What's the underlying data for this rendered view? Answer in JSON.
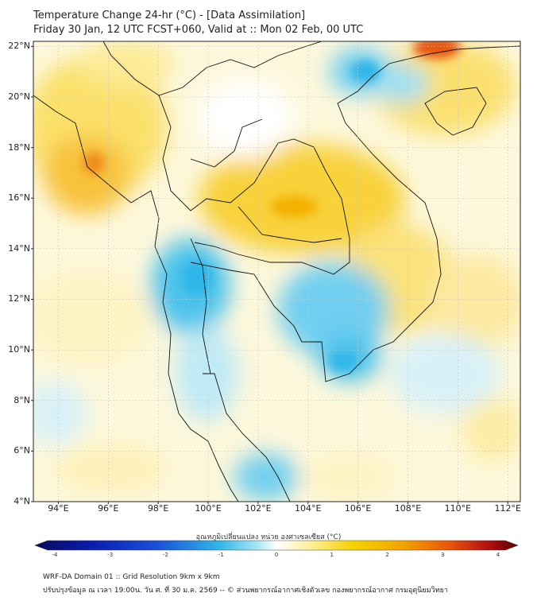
{
  "header": {
    "title_line1": "Temperature Change 24-hr (°C) - [Data Assimilation]",
    "title_line2": "Friday 30 Jan, 12 UTC FCST+060, Valid at :: Mon 02 Feb, 00 UTC"
  },
  "map": {
    "lat_labels": [
      "22°N",
      "20°N",
      "18°N",
      "16°N",
      "14°N",
      "12°N",
      "10°N",
      "8°N",
      "6°N",
      "4°N"
    ],
    "lon_labels": [
      "94°E",
      "96°E",
      "98°E",
      "100°E",
      "102°E",
      "104°E",
      "106°E",
      "108°E",
      "110°E",
      "112°E"
    ],
    "lat_range": [
      4,
      22.2
    ],
    "lon_range": [
      93,
      112.5
    ],
    "grid": true
  },
  "colorbar": {
    "label": "อุณหภูมิเปลี่ยนแปลง หน่วย องศาเซลเซียส (°C)",
    "ticks": [
      "-4",
      "-3",
      "-2",
      "-1",
      "0",
      "1",
      "2",
      "3",
      "4"
    ],
    "range": [
      -4,
      4
    ],
    "colors": {
      "min": "#08085e",
      "cold": "#1a4ed8",
      "cool": "#2fb6e8",
      "light_cool": "#a8e4f4",
      "neutral": "#ffffff",
      "light_warm": "#fff2a8",
      "warm": "#f5c400",
      "hot": "#f07b10",
      "max": "#5c0000"
    }
  },
  "footer": {
    "line1": "WRF-DA Domain 01 :: Grid Resolution 9km x 9km",
    "line2": "ปรับปรุงข้อมูล ณ เวลา 19:00น. วัน ศ. ที่ 30 ม.ค. 2569 -- © ส่วนพยากรณ์อากาศเชิงตัวเลข กองพยากรณ์อากาศ กรมอุตุนิยมวิทยา"
  }
}
